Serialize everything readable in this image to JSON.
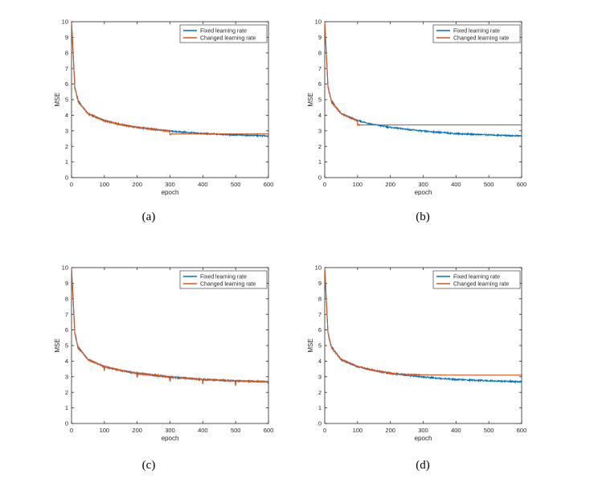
{
  "colors": {
    "fixed": "#0072BD",
    "changed": "#D95319",
    "axis": "#262626",
    "background": "#ffffff"
  },
  "chart_data": [
    {
      "type": "line",
      "caption": "(a)",
      "xlabel": "epoch",
      "ylabel": "MSE",
      "xlim": [
        0,
        600
      ],
      "ylim": [
        0,
        10
      ],
      "xticks": [
        "0",
        "100",
        "200",
        "300",
        "400",
        "500",
        "600"
      ],
      "yticks": [
        "0",
        "1",
        "2",
        "3",
        "4",
        "5",
        "6",
        "7",
        "8",
        "9",
        "10"
      ],
      "legend": [
        "Fixed learning rate",
        "Changed learning rate"
      ],
      "legend_position": "top-right",
      "series": [
        {
          "name": "Fixed learning rate",
          "kind": "base",
          "start": 10,
          "points": [
            [
              10,
              5.8
            ],
            [
              20,
              4.9
            ],
            [
              50,
              4.1
            ],
            [
              100,
              3.65
            ],
            [
              150,
              3.4
            ],
            [
              200,
              3.22
            ],
            [
              300,
              2.98
            ],
            [
              400,
              2.82
            ],
            [
              500,
              2.74
            ],
            [
              600,
              2.67
            ]
          ]
        },
        {
          "name": "Changed learning rate",
          "kind": "plateau",
          "change_epoch": 300,
          "drop_to": 2.75,
          "plateau": 2.8
        }
      ]
    },
    {
      "type": "line",
      "caption": "(b)",
      "xlabel": "epoch",
      "ylabel": "MSE",
      "xlim": [
        0,
        600
      ],
      "ylim": [
        0,
        10
      ],
      "xticks": [
        "0",
        "100",
        "200",
        "300",
        "400",
        "500",
        "600"
      ],
      "yticks": [
        "0",
        "1",
        "2",
        "3",
        "4",
        "5",
        "6",
        "7",
        "8",
        "9",
        "10"
      ],
      "legend": [
        "Fixed learning rate",
        "Changed learning rate"
      ],
      "legend_position": "top-right",
      "series": [
        {
          "name": "Fixed learning rate",
          "kind": "base",
          "start": 10,
          "points": [
            [
              10,
              5.8
            ],
            [
              20,
              4.9
            ],
            [
              50,
              4.1
            ],
            [
              100,
              3.65
            ],
            [
              150,
              3.4
            ],
            [
              200,
              3.22
            ],
            [
              300,
              2.98
            ],
            [
              400,
              2.82
            ],
            [
              500,
              2.74
            ],
            [
              600,
              2.67
            ]
          ]
        },
        {
          "name": "Changed learning rate",
          "kind": "plateau",
          "change_epoch": 100,
          "drop_to": 3.4,
          "plateau": 3.38
        }
      ]
    },
    {
      "type": "line",
      "caption": "(c)",
      "xlabel": "epoch",
      "ylabel": "MSE",
      "xlim": [
        0,
        600
      ],
      "ylim": [
        0,
        10
      ],
      "xticks": [
        "0",
        "100",
        "200",
        "300",
        "400",
        "500",
        "600"
      ],
      "yticks": [
        "0",
        "1",
        "2",
        "3",
        "4",
        "5",
        "6",
        "7",
        "8",
        "9",
        "10"
      ],
      "legend": [
        "Fixed learning rate",
        "Changed learning rate"
      ],
      "legend_position": "top-right",
      "series": [
        {
          "name": "Fixed learning rate",
          "kind": "base",
          "start": 10,
          "points": [
            [
              10,
              5.8
            ],
            [
              20,
              4.9
            ],
            [
              50,
              4.1
            ],
            [
              100,
              3.65
            ],
            [
              150,
              3.4
            ],
            [
              200,
              3.22
            ],
            [
              300,
              2.98
            ],
            [
              400,
              2.82
            ],
            [
              500,
              2.74
            ],
            [
              600,
              2.67
            ]
          ]
        },
        {
          "name": "Changed learning rate",
          "kind": "dips",
          "dip_epochs": [
            100,
            200,
            300,
            400,
            500,
            600
          ],
          "dip_depth": 0.3
        }
      ]
    },
    {
      "type": "line",
      "caption": "(d)",
      "xlabel": "epoch",
      "ylabel": "MSE",
      "xlim": [
        0,
        600
      ],
      "ylim": [
        0,
        10
      ],
      "xticks": [
        "0",
        "100",
        "200",
        "300",
        "400",
        "500",
        "600"
      ],
      "yticks": [
        "0",
        "1",
        "2",
        "3",
        "4",
        "5",
        "6",
        "7",
        "8",
        "9",
        "10"
      ],
      "legend": [
        "Fixed learning rate",
        "Changed learning rate"
      ],
      "legend_position": "top-right",
      "series": [
        {
          "name": "Fixed learning rate",
          "kind": "base",
          "start": 10,
          "points": [
            [
              10,
              5.8
            ],
            [
              20,
              4.9
            ],
            [
              50,
              4.1
            ],
            [
              100,
              3.65
            ],
            [
              150,
              3.4
            ],
            [
              200,
              3.22
            ],
            [
              300,
              2.98
            ],
            [
              400,
              2.82
            ],
            [
              500,
              2.74
            ],
            [
              600,
              2.67
            ]
          ]
        },
        {
          "name": "Changed learning rate",
          "kind": "saturate",
          "plateau": 3.1
        }
      ]
    }
  ]
}
